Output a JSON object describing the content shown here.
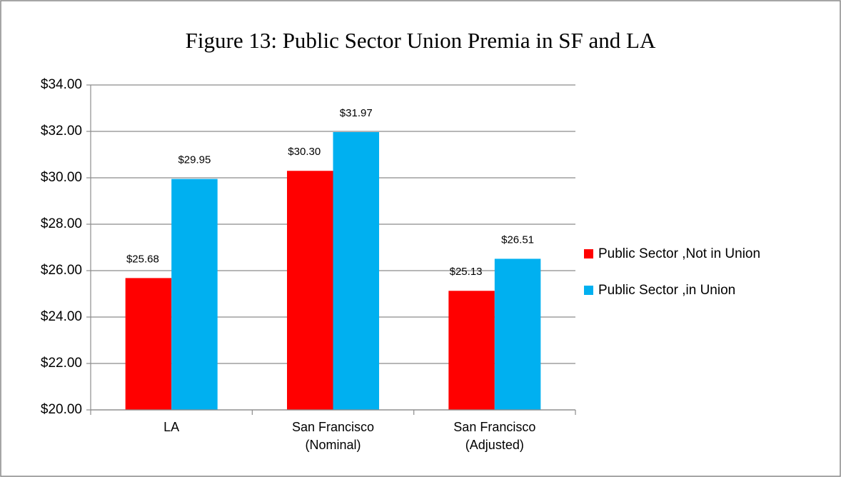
{
  "chart_data": {
    "type": "bar",
    "title": "Figure 13: Public Sector Union Premia in SF and LA",
    "categories": [
      "LA",
      "San Francisco (Nominal)",
      "San Francisco (Adjusted)"
    ],
    "series": [
      {
        "name": "Public Sector ,Not in Union",
        "color": "#ff0000",
        "values": [
          25.68,
          30.3,
          25.13
        ],
        "value_labels": [
          "$25.68",
          "$30.30",
          "$25.13"
        ]
      },
      {
        "name": "Public Sector ,in Union",
        "color": "#00b0f0",
        "values": [
          29.95,
          31.97,
          26.51
        ],
        "value_labels": [
          "$29.95",
          "$31.97",
          "$26.51"
        ]
      }
    ],
    "ylim": [
      20,
      34
    ],
    "yticks": [
      {
        "value": 20,
        "label": "$20.00"
      },
      {
        "value": 22,
        "label": "$22.00"
      },
      {
        "value": 24,
        "label": "$24.00"
      },
      {
        "value": 26,
        "label": "$26.00"
      },
      {
        "value": 28,
        "label": "$28.00"
      },
      {
        "value": 30,
        "label": "$30.00"
      },
      {
        "value": 32,
        "label": "$32.00"
      },
      {
        "value": 34,
        "label": "$34.00"
      }
    ],
    "grid": true,
    "legend": "right"
  }
}
